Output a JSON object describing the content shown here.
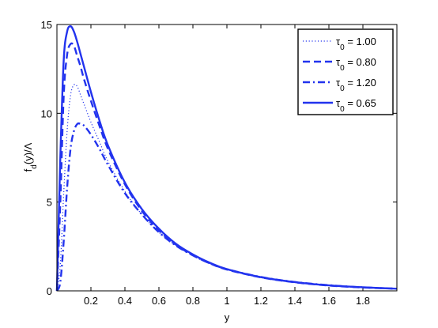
{
  "chart_data": {
    "type": "line",
    "xlabel": "y",
    "ylabel": "f_d(y)/Λ",
    "xlim": [
      0,
      2
    ],
    "ylim": [
      0,
      15
    ],
    "x_ticks": [
      0.2,
      0.4,
      0.6,
      0.8,
      1,
      1.2,
      1.4,
      1.6,
      1.8
    ],
    "x_tick_labels": [
      "0.2",
      "0.4",
      "0.6",
      "0.8",
      "1",
      "1.2",
      "1.4",
      "1.6",
      "1.8"
    ],
    "y_ticks": [
      0,
      5,
      10,
      15
    ],
    "y_tick_labels": [
      "0",
      "5",
      "10",
      "15"
    ],
    "grid": false,
    "legend_position": "top-right",
    "series": [
      {
        "name": "τ0 = 1.00",
        "label_prefix": "τ",
        "label_sub": "0",
        "label_value": " = 1.00",
        "style": "dotted",
        "color": "#2233ee",
        "x": [
          0.0,
          0.02,
          0.04,
          0.06,
          0.08,
          0.1,
          0.12,
          0.14,
          0.16,
          0.2,
          0.25,
          0.3,
          0.4,
          0.5,
          0.6,
          0.7,
          0.8,
          0.9,
          1.0,
          1.2,
          1.4,
          1.6,
          1.8,
          2.0
        ],
        "y": [
          0.0,
          1.5,
          5.5,
          9.0,
          11.0,
          11.6,
          11.5,
          11.0,
          10.5,
          9.5,
          8.4,
          7.3,
          5.6,
          4.3,
          3.3,
          2.55,
          2.0,
          1.55,
          1.22,
          0.78,
          0.5,
          0.32,
          0.2,
          0.12
        ]
      },
      {
        "name": "τ0 = 0.80",
        "label_prefix": "τ",
        "label_sub": "0",
        "label_value": " = 0.80",
        "style": "dashed",
        "color": "#2233ee",
        "x": [
          0.0,
          0.02,
          0.04,
          0.06,
          0.08,
          0.1,
          0.12,
          0.14,
          0.16,
          0.2,
          0.25,
          0.3,
          0.4,
          0.5,
          0.6,
          0.7,
          0.8,
          0.9,
          1.0,
          1.2,
          1.4,
          1.6,
          1.8,
          2.0
        ],
        "y": [
          0.0,
          5.0,
          11.0,
          13.3,
          13.9,
          13.8,
          13.2,
          12.6,
          11.9,
          10.7,
          9.3,
          8.0,
          6.0,
          4.5,
          3.4,
          2.6,
          2.0,
          1.55,
          1.2,
          0.76,
          0.48,
          0.3,
          0.19,
          0.12
        ]
      },
      {
        "name": "τ0 = 1.20",
        "label_prefix": "τ",
        "label_sub": "0",
        "label_value": " = 1.20",
        "style": "dashdot",
        "color": "#2233ee",
        "x": [
          0.0,
          0.02,
          0.04,
          0.06,
          0.08,
          0.1,
          0.12,
          0.14,
          0.16,
          0.2,
          0.25,
          0.3,
          0.4,
          0.5,
          0.6,
          0.7,
          0.8,
          0.9,
          1.0,
          1.2,
          1.4,
          1.6,
          1.8,
          2.0
        ],
        "y": [
          0.0,
          0.5,
          2.8,
          5.8,
          8.0,
          9.0,
          9.4,
          9.4,
          9.3,
          8.8,
          8.0,
          7.1,
          5.5,
          4.3,
          3.3,
          2.55,
          2.0,
          1.55,
          1.22,
          0.78,
          0.5,
          0.32,
          0.2,
          0.12
        ]
      },
      {
        "name": "τ0 = 0.65",
        "label_prefix": "τ",
        "label_sub": "0",
        "label_value": " = 0.65",
        "style": "solid",
        "color": "#2233ee",
        "x": [
          0.0,
          0.02,
          0.04,
          0.06,
          0.08,
          0.1,
          0.12,
          0.14,
          0.16,
          0.2,
          0.25,
          0.3,
          0.4,
          0.5,
          0.6,
          0.7,
          0.8,
          0.9,
          1.0,
          1.2,
          1.4,
          1.6,
          1.8,
          2.0
        ],
        "y": [
          0.0,
          7.5,
          13.0,
          14.6,
          14.9,
          14.6,
          14.0,
          13.3,
          12.6,
          11.2,
          9.6,
          8.2,
          6.1,
          4.6,
          3.5,
          2.65,
          2.05,
          1.58,
          1.22,
          0.77,
          0.49,
          0.31,
          0.2,
          0.12
        ]
      }
    ]
  }
}
